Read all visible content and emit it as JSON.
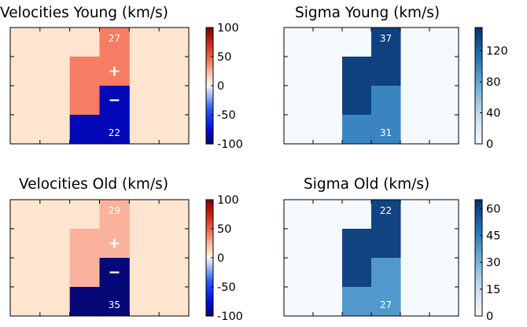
{
  "chart_data": [
    {
      "type": "heatmap",
      "title": "Velocities Young (km/s)",
      "colormap": "diverging-blue-white-red",
      "clim": [
        -100,
        100
      ],
      "colorbar_ticks": [
        "100",
        "50",
        "0",
        "-50",
        "-100"
      ],
      "grid": {
        "rows": 4,
        "cols": 6
      },
      "cells": [
        {
          "row": 0,
          "col": 3,
          "value": 40,
          "label": "27"
        },
        {
          "row": 1,
          "col": 2,
          "value": 40
        },
        {
          "row": 1,
          "col": 3,
          "value": 40,
          "label": "+"
        },
        {
          "row": 2,
          "col": 2,
          "value": 40
        },
        {
          "row": 2,
          "col": 3,
          "value": -85,
          "label": "−"
        },
        {
          "row": 3,
          "col": 2,
          "value": -85
        },
        {
          "row": 3,
          "col": 3,
          "value": -85,
          "label": "22"
        }
      ],
      "background_value": 8
    },
    {
      "type": "heatmap",
      "title": "Sigma Young (km/s)",
      "colormap": "sequential-blues",
      "clim": [
        0,
        150
      ],
      "colorbar_ticks": [
        "120",
        "80",
        "40",
        "0"
      ],
      "grid": {
        "rows": 4,
        "cols": 6
      },
      "cells": [
        {
          "row": 0,
          "col": 3,
          "value": 140,
          "label": "37"
        },
        {
          "row": 1,
          "col": 2,
          "value": 140
        },
        {
          "row": 1,
          "col": 3,
          "value": 140
        },
        {
          "row": 2,
          "col": 2,
          "value": 140
        },
        {
          "row": 2,
          "col": 3,
          "value": 100
        },
        {
          "row": 3,
          "col": 2,
          "value": 100
        },
        {
          "row": 3,
          "col": 3,
          "value": 100,
          "label": "31"
        }
      ],
      "background_value": 2
    },
    {
      "type": "heatmap",
      "title": "Velocities Old (km/s)",
      "colormap": "diverging-blue-white-red",
      "clim": [
        -100,
        100
      ],
      "colorbar_ticks": [
        "100",
        "50",
        "0",
        "-50",
        "-100"
      ],
      "grid": {
        "rows": 4,
        "cols": 6
      },
      "cells": [
        {
          "row": 0,
          "col": 3,
          "value": 25,
          "label": "29"
        },
        {
          "row": 1,
          "col": 2,
          "value": 25
        },
        {
          "row": 1,
          "col": 3,
          "value": 25,
          "label": "+"
        },
        {
          "row": 2,
          "col": 2,
          "value": 25
        },
        {
          "row": 2,
          "col": 3,
          "value": -98,
          "label": "−"
        },
        {
          "row": 3,
          "col": 2,
          "value": -98
        },
        {
          "row": 3,
          "col": 3,
          "value": -98,
          "label": "35"
        }
      ],
      "background_value": 8
    },
    {
      "type": "heatmap",
      "title": "Sigma Old (km/s)",
      "colormap": "sequential-blues",
      "clim": [
        0,
        65
      ],
      "colorbar_ticks": [
        "60",
        "45",
        "30",
        "15",
        "0"
      ],
      "grid": {
        "rows": 4,
        "cols": 6
      },
      "cells": [
        {
          "row": 0,
          "col": 3,
          "value": 60,
          "label": "22"
        },
        {
          "row": 1,
          "col": 2,
          "value": 60
        },
        {
          "row": 1,
          "col": 3,
          "value": 60
        },
        {
          "row": 2,
          "col": 2,
          "value": 60
        },
        {
          "row": 2,
          "col": 3,
          "value": 38
        },
        {
          "row": 3,
          "col": 2,
          "value": 38
        },
        {
          "row": 3,
          "col": 3,
          "value": 38,
          "label": "27"
        }
      ],
      "background_value": 1
    }
  ]
}
